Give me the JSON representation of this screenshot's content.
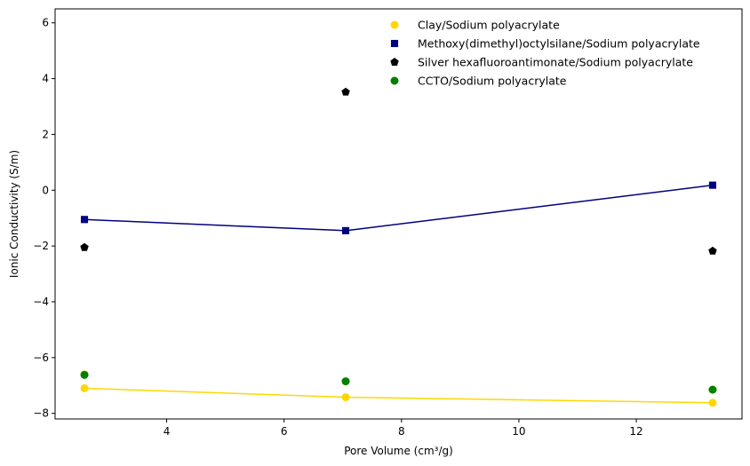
{
  "chart_data": {
    "type": "scatter",
    "title": "",
    "xlabel": "Pore Volume (cm³/g)",
    "ylabel": "Ionic Conductivity (S/m)",
    "xlim": [
      2.1,
      13.8
    ],
    "ylim": [
      -8.2,
      6.5
    ],
    "xticks": [
      4,
      6,
      8,
      10,
      12
    ],
    "yticks": [
      -8,
      -6,
      -4,
      -2,
      0,
      2,
      4,
      6
    ],
    "grid": false,
    "legend_position": "upper right",
    "series": [
      {
        "name": "Clay/Sodium polyacrylate",
        "color": "#FFD700",
        "marker": "circle",
        "points": [
          {
            "x": 2.6,
            "y": -6.6
          },
          {
            "x": 7.05,
            "y": -6.85
          },
          {
            "x": 13.3,
            "y": -7.15
          }
        ],
        "line": [
          {
            "x": 2.6,
            "y": -7.1
          },
          {
            "x": 7.05,
            "y": -7.42
          },
          {
            "x": 13.3,
            "y": -7.62
          }
        ],
        "line_color": "#FFD700"
      },
      {
        "name": "Methoxy(dimethyl)octylsilane/Sodium polyacrylate",
        "color": "#000080",
        "marker": "square",
        "points": [
          {
            "x": 2.6,
            "y": -1.05
          },
          {
            "x": 7.05,
            "y": -1.45
          },
          {
            "x": 13.3,
            "y": 0.18
          }
        ],
        "line": [
          {
            "x": 2.6,
            "y": -1.05
          },
          {
            "x": 7.05,
            "y": -1.45
          },
          {
            "x": 13.3,
            "y": 0.18
          }
        ],
        "line_color": "#000080"
      },
      {
        "name": "Silver hexafluoroantimonate/Sodium polyacrylate",
        "color": "#000000",
        "marker": "pentagon",
        "points": [
          {
            "x": 2.6,
            "y": -2.05
          },
          {
            "x": 7.05,
            "y": 3.52
          },
          {
            "x": 13.3,
            "y": -2.18
          }
        ]
      },
      {
        "name": "CCTO/Sodium polyacrylate",
        "color": "#008000",
        "marker": "circle",
        "points": [
          {
            "x": 2.6,
            "y": -6.62
          },
          {
            "x": 7.05,
            "y": -6.85
          },
          {
            "x": 13.3,
            "y": -7.15
          }
        ]
      }
    ],
    "extra_points": [
      {
        "series": "Clay/Sodium polyacrylate",
        "x": 2.6,
        "y": -7.1
      },
      {
        "series": "Clay/Sodium polyacrylate",
        "x": 7.05,
        "y": -7.42
      },
      {
        "series": "Clay/Sodium polyacrylate",
        "x": 13.3,
        "y": -7.62
      }
    ]
  }
}
